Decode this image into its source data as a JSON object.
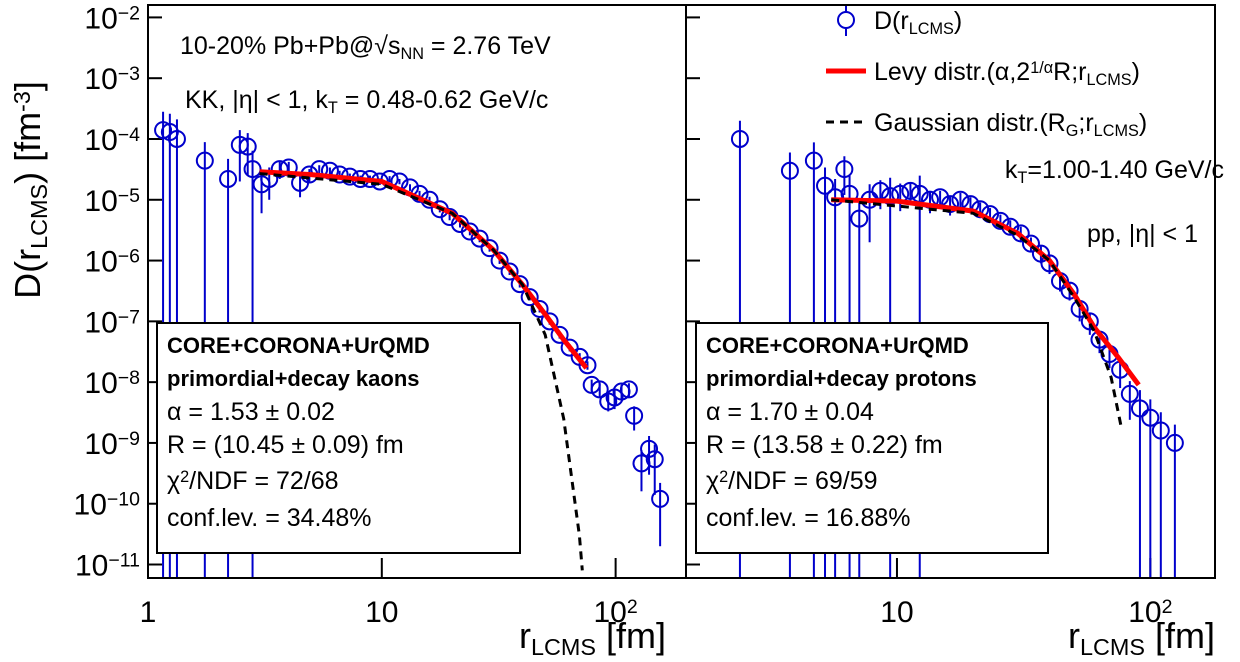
{
  "chart_data": [
    {
      "type": "scatter",
      "log_x": true,
      "log_y": true,
      "y_label": [
        [
          "D(r",
          "base"
        ],
        [
          "LCMS",
          "sub"
        ],
        [
          ") [fm",
          "base"
        ],
        [
          "-3",
          "sup"
        ],
        [
          "]",
          "base"
        ]
      ],
      "x_label": [
        [
          "r",
          "base"
        ],
        [
          "LCMS",
          "sub"
        ],
        [
          " [fm]",
          "base"
        ]
      ],
      "xlim": [
        1,
        200
      ],
      "ylim": [
        6e-12,
        0.016
      ],
      "xticks": [
        1,
        10,
        {
          "value": 100,
          "label": [
            [
              "10",
              "base"
            ],
            [
              "2",
              "sup"
            ]
          ]
        }
      ],
      "yticks": [
        {
          "value": 1e-11,
          "label": [
            [
              "10",
              "base"
            ],
            [
              "−11",
              "sup"
            ]
          ]
        },
        {
          "value": 1e-10,
          "label": [
            [
              "10",
              "base"
            ],
            [
              "−10",
              "sup"
            ]
          ]
        },
        {
          "value": 1e-09,
          "label": [
            [
              "10",
              "base"
            ],
            [
              "−9",
              "sup"
            ]
          ]
        },
        {
          "value": 1e-08,
          "label": [
            [
              "10",
              "base"
            ],
            [
              "−8",
              "sup"
            ]
          ]
        },
        {
          "value": 1e-07,
          "label": [
            [
              "10",
              "base"
            ],
            [
              "−7",
              "sup"
            ]
          ]
        },
        {
          "value": 1e-06,
          "label": [
            [
              "10",
              "base"
            ],
            [
              "−6",
              "sup"
            ]
          ]
        },
        {
          "value": 1e-05,
          "label": [
            [
              "10",
              "base"
            ],
            [
              "−5",
              "sup"
            ]
          ]
        },
        {
          "value": 0.0001,
          "label": [
            [
              "10",
              "base"
            ],
            [
              "−4",
              "sup"
            ]
          ]
        },
        {
          "value": 0.001,
          "label": [
            [
              "10",
              "base"
            ],
            [
              "−3",
              "sup"
            ]
          ]
        },
        {
          "value": 0.01,
          "label": [
            [
              "10",
              "base"
            ],
            [
              "−2",
              "sup"
            ]
          ]
        }
      ],
      "annotations": [
        [
          [
            "10-20% Pb+Pb@√s",
            "base"
          ],
          [
            "NN",
            "sub"
          ],
          [
            " = 2.76 TeV",
            "base"
          ]
        ],
        [
          [
            "KK, |η| < 1, k",
            "base"
          ],
          [
            "T",
            "sub"
          ],
          [
            " = 0.48-0.62 GeV/c",
            "base"
          ]
        ]
      ],
      "box": [
        [
          [
            "CORE+CORONA+UrQMD",
            "base"
          ]
        ],
        [
          [
            "primordial+decay kaons",
            "base"
          ]
        ],
        [
          [
            "α = 1.53 ± 0.02",
            "base"
          ]
        ],
        [
          [
            "R = (10.45 ± 0.09) fm",
            "base"
          ]
        ],
        [
          [
            "χ",
            "base"
          ],
          [
            "2",
            "sup"
          ],
          [
            "/NDF = 72/68",
            "base"
          ]
        ],
        [
          [
            "conf.lev. = 34.48%",
            "base"
          ]
        ]
      ],
      "series": [
        {
          "style": "points",
          "color": "#0000cc",
          "x": [
            1.16,
            1.24,
            1.33,
            1.75,
            2.2,
            2.47,
            2.67,
            2.8,
            3.06,
            3.3,
            3.66,
            4.0,
            4.47,
            4.9,
            5.4,
            6.0,
            6.6,
            7.3,
            8.1,
            8.9,
            9.8,
            10.8,
            11.9,
            13.2,
            14.5,
            16,
            17.7,
            19.5,
            21.6,
            23.8,
            26.2,
            28.9,
            31.9,
            35.2,
            38.9,
            42.9,
            47.3,
            52.2,
            57.6,
            63.6,
            70.2,
            75.8,
            79,
            85.5,
            93,
            99,
            106,
            114,
            120,
            129,
            139,
            147,
            155
          ],
          "values": [
            0.00014,
            0.00013,
            0.0001,
            4.4e-05,
            2.2e-05,
            8e-05,
            7.5e-05,
            3.2e-05,
            1.8e-05,
            2.2e-05,
            3.2e-05,
            3.4e-05,
            1.9e-05,
            2.6e-05,
            3.2e-05,
            3e-05,
            2.6e-05,
            2.4e-05,
            2.2e-05,
            2.2e-05,
            2e-05,
            2.2e-05,
            2e-05,
            1.6e-05,
            1.25e-05,
            1e-05,
            7e-06,
            5.2e-06,
            4e-06,
            3e-06,
            2.3e-06,
            1.6e-06,
            1e-06,
            6.6e-07,
            4.1e-07,
            2.5e-07,
            1.6e-07,
            1e-07,
            6e-08,
            3.7e-08,
            2.6e-08,
            1.9e-08,
            9e-09,
            7.6e-09,
            4.8e-09,
            5.6e-09,
            7e-09,
            7.6e-09,
            2.8e-09,
            4.6e-10,
            8e-10,
            5.4e-10,
            1.2e-10
          ],
          "errors": [
            0.00014,
            0.00013,
            0.00011,
            4.5e-05,
            2.5e-05,
            6e-05,
            5e-05,
            3.2e-05,
            1.2e-05,
            1.2e-05,
            1e-05,
            8e-06,
            8e-06,
            6e-06,
            5e-06,
            4e-06,
            4e-06,
            3e-06,
            3e-06,
            3e-06,
            2.5e-06,
            2.5e-06,
            2e-06,
            2e-06,
            1.5e-06,
            1.2e-06,
            8e-07,
            6e-07,
            5e-07,
            4e-07,
            3e-07,
            2e-07,
            1.2e-07,
            8e-08,
            5e-08,
            3e-08,
            2e-08,
            1.2e-08,
            8e-09,
            5e-09,
            4e-09,
            3e-09,
            2e-09,
            2e-09,
            1.5e-09,
            2e-09,
            2e-09,
            2e-09,
            1.2e-09,
            3e-10,
            5e-10,
            4e-10,
            1e-10
          ]
        },
        {
          "style": "line",
          "color": "#ff0000",
          "x": [
            3,
            5,
            10,
            20,
            30,
            40,
            50,
            60,
            75
          ],
          "values": [
            2.9e-05,
            2.6e-05,
            2e-05,
            6e-06,
            1.5e-06,
            4e-07,
            1.3e-07,
            5e-08,
            1.7e-08
          ]
        },
        {
          "style": "dashed",
          "color": "#000000",
          "x": [
            3,
            10,
            20,
            30,
            40,
            50,
            60,
            70,
            72
          ],
          "values": [
            2.7e-05,
            1.8e-05,
            6e-06,
            1.5e-06,
            4e-07,
            6e-08,
            2.5e-09,
            3e-11,
            8e-12
          ]
        }
      ]
    },
    {
      "type": "scatter",
      "log_x": true,
      "log_y": true,
      "x_label": [
        [
          "r",
          "base"
        ],
        [
          "LCMS",
          "sub"
        ],
        [
          " [fm]",
          "base"
        ]
      ],
      "xlim": [
        1.47,
        180
      ],
      "ylim": [
        6e-12,
        0.016
      ],
      "xticks": [
        10,
        {
          "value": 100,
          "label": [
            [
              "10",
              "base"
            ],
            [
              "2",
              "sup"
            ]
          ]
        }
      ],
      "legend": "upper right",
      "annotations": [
        [
          [
            "k",
            "base"
          ],
          [
            "T",
            "sub"
          ],
          [
            "=1.00-1.40 GeV/c",
            "base"
          ]
        ],
        [
          [
            "pp, |η| < 1",
            "base"
          ]
        ]
      ],
      "box": [
        [
          [
            "CORE+CORONA+UrQMD",
            "base"
          ]
        ],
        [
          [
            "primordial+decay protons",
            "base"
          ]
        ],
        [
          [
            "α = 1.70 ± 0.04",
            "base"
          ]
        ],
        [
          [
            "R = (13.58 ± 0.22) fm",
            "base"
          ]
        ],
        [
          [
            "χ",
            "base"
          ],
          [
            "2",
            "sup"
          ],
          [
            "/NDF = 69/59",
            "base"
          ]
        ],
        [
          [
            "conf.lev. = 16.88%",
            "base"
          ]
        ]
      ],
      "series": [
        {
          "style": "points",
          "color": "#0000cc",
          "name": [
            [
              "D(r",
              "base"
            ],
            [
              "LCMS",
              "sub"
            ],
            [
              ")",
              "base"
            ]
          ],
          "x": [
            2.4,
            3.78,
            4.7,
            5.2,
            5.7,
            6.2,
            6.5,
            7.1,
            7.8,
            8.6,
            9.4,
            10.3,
            11.3,
            12.3,
            13.5,
            14.8,
            16.2,
            17.8,
            19.5,
            21.3,
            23.3,
            25.6,
            28,
            30.8,
            33.8,
            37,
            40,
            44,
            48,
            52.6,
            57.7,
            63,
            69,
            76,
            83,
            91,
            100,
            110,
            125
          ],
          "values": [
            0.0001,
            3e-05,
            4.4e-05,
            1.7e-05,
            1.1e-05,
            3.2e-05,
            1.25e-05,
            4.9e-06,
            1e-05,
            1.4e-05,
            1.15e-05,
            1.25e-05,
            1.4e-05,
            1.25e-05,
            1e-05,
            1.1e-05,
            8.5e-06,
            1e-05,
            8.5e-06,
            7e-06,
            5.8e-06,
            4.5e-06,
            3.6e-06,
            2.8e-06,
            1.9e-06,
            1.3e-06,
            9e-07,
            4.6e-07,
            3.2e-07,
            1.6e-07,
            1e-07,
            5e-08,
            2.9e-08,
            1.6e-08,
            6.4e-09,
            3.7e-09,
            2.6e-09,
            1.6e-09,
            1e-09
          ],
          "errors": [
            0.0001,
            3e-05,
            4.4e-05,
            1.7e-05,
            1.1e-05,
            2e-05,
            1.25e-05,
            4.9e-06,
            8e-06,
            7e-06,
            1.15e-05,
            6e-06,
            5e-06,
            1.25e-05,
            4e-06,
            3e-06,
            3e-06,
            3e-06,
            2.5e-06,
            2e-06,
            1.5e-06,
            1.2e-06,
            1e-06,
            8e-07,
            5e-07,
            4e-07,
            3e-07,
            1.5e-07,
            1e-07,
            6e-08,
            4e-08,
            2e-08,
            1.2e-08,
            8e-09,
            4e-09,
            3.7e-09,
            2.6e-09,
            1.6e-09,
            1e-09
          ]
        },
        {
          "style": "line",
          "color": "#ff0000",
          "name": [
            [
              "Levy distr.(α,2",
              "base"
            ],
            [
              "1/α",
              "sup"
            ],
            [
              "R;r",
              "base"
            ],
            [
              "LCMS",
              "sub"
            ],
            [
              ")",
              "base"
            ]
          ],
          "x": [
            5.5,
            10,
            20,
            30,
            40,
            50,
            60,
            75,
            90
          ],
          "values": [
            1e-05,
            9.5e-06,
            6.5e-06,
            2.8e-06,
            1e-06,
            2.8e-07,
            8e-08,
            2.5e-08,
            9e-09
          ]
        },
        {
          "style": "dashed",
          "color": "#000000",
          "name": [
            [
              "Gaussian distr.(R",
              "base"
            ],
            [
              "G",
              "sub"
            ],
            [
              ";r",
              "base"
            ],
            [
              "LCMS",
              "sub"
            ],
            [
              ")",
              "base"
            ]
          ],
          "x": [
            5.5,
            20,
            30,
            40,
            50,
            60,
            70,
            77
          ],
          "values": [
            1e-05,
            6e-06,
            2.6e-06,
            1e-06,
            2.5e-07,
            7e-08,
            1.2e-08,
            1.7e-09
          ]
        }
      ]
    }
  ]
}
